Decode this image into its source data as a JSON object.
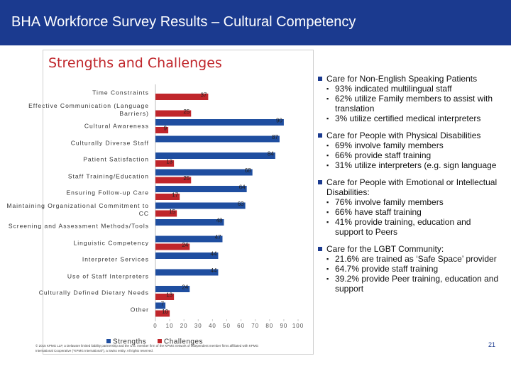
{
  "header": {
    "title": "BHA Workforce Survey Results – Cultural Competency"
  },
  "chart_data": {
    "type": "bar",
    "orientation": "horizontal",
    "title": "Strengths and Challenges",
    "categories": [
      "Time Constraints",
      "Effective Communication (Language Barriers)",
      "Cultural Awareness",
      "Culturally Diverse Staff",
      "Patient Satisfaction",
      "Staff Training/Education",
      "Ensuring Follow-up Care",
      "Maintaining Organizational Commitment to CC",
      "Screening and Assessment Methods/Tools",
      "Linguistic Competency",
      "Interpreter Services",
      "Use of Staff Interpreters",
      "Culturally Defined Dietary Needs",
      "Other"
    ],
    "series": [
      {
        "name": "Strengths",
        "color": "#1f4ea0",
        "values": [
          null,
          null,
          90,
          87,
          84,
          68,
          64,
          63,
          48,
          47,
          44,
          44,
          24,
          7
        ]
      },
      {
        "name": "Challenges",
        "color": "#c0262b",
        "values": [
          37,
          25,
          9,
          null,
          13,
          25,
          17,
          15,
          null,
          24,
          null,
          null,
          13,
          10
        ]
      }
    ],
    "xlim": [
      0,
      100
    ],
    "xticks": [
      0,
      10,
      20,
      30,
      40,
      50,
      60,
      70,
      80,
      90,
      100
    ],
    "legend": "bottom",
    "grid": false
  },
  "bullets": [
    {
      "heading": "Care for Non-English Speaking Patients",
      "items": [
        "93% indicated multilingual staff",
        "62% utilize Family members to assist with translation",
        "3% utilize certified medical interpreters"
      ]
    },
    {
      "heading": "Care for People with Physical Disabilities",
      "items": [
        "69% involve family members",
        "66% provide staff training",
        "31% utilize interpreters (e.g. sign language"
      ]
    },
    {
      "heading": "Care for People with Emotional or Intellectual Disabilities:",
      "items": [
        "76% involve family members",
        "66% have staff training",
        "41% provide training, education and support to Peers"
      ]
    },
    {
      "heading": "Care for the LGBT Community:",
      "items": [
        "21.6% are trained as ‘Safe Space’ provider",
        "64.7% provide staff training",
        "39.2% provide Peer training, education and support"
      ]
    }
  ],
  "footer": {
    "copyright": "© 2015 KPMG LLP, a Delaware limited liability partnership and the U.S. member firm of the KPMG network of independent member firms affiliated with KPMG International Cooperative (“KPMG International”), a Swiss entity. All rights reserved.",
    "page_number": "21"
  }
}
